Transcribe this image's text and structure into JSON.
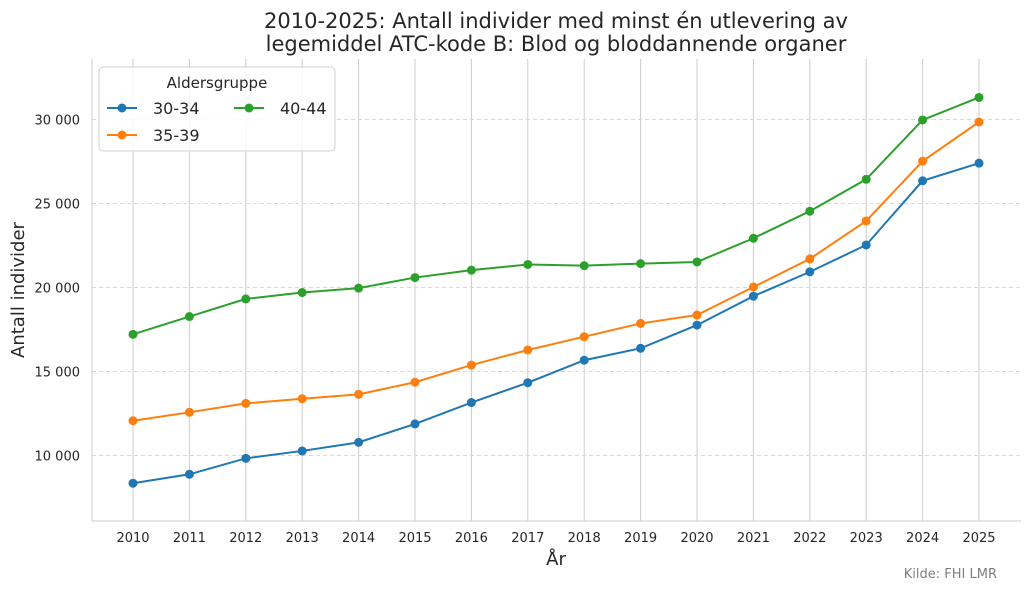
{
  "chart_data": {
    "type": "line",
    "title_line1": "2010-2025: Antall individer med minst én utlevering av",
    "title_line2": "legemiddel ATC-kode B: Blod og bloddannende organer",
    "xlabel": "År",
    "ylabel": "Antall individer",
    "x": [
      2010,
      2011,
      2012,
      2013,
      2014,
      2015,
      2016,
      2017,
      2018,
      2019,
      2020,
      2021,
      2022,
      2023,
      2024,
      2025
    ],
    "x_tick_labels": [
      "2010",
      "2011",
      "2012",
      "2013",
      "2014",
      "2015",
      "2016",
      "2017",
      "2018",
      "2019",
      "2020",
      "2021",
      "2022",
      "2023",
      "2024",
      "2025"
    ],
    "ylim": [
      6100,
      33600
    ],
    "y_ticks": [
      10000,
      15000,
      20000,
      25000,
      30000
    ],
    "y_tick_labels": [
      "10 000",
      "15 000",
      "20 000",
      "25 000",
      "30 000"
    ],
    "grid": "x solid, y dashed",
    "legend": {
      "title": "Aldersgruppe",
      "placement": "top-left"
    },
    "series": [
      {
        "name": "30-34",
        "color": "#1f77b4",
        "values": [
          8350,
          8880,
          9830,
          10270,
          10780,
          11880,
          13150,
          14330,
          15670,
          16380,
          17760,
          19480,
          20930,
          22530,
          26350,
          27400
        ]
      },
      {
        "name": "35-39",
        "color": "#ff7f0e",
        "values": [
          12070,
          12570,
          13100,
          13380,
          13640,
          14360,
          15380,
          16280,
          17070,
          17860,
          18360,
          20030,
          21700,
          23960,
          27520,
          29850
        ]
      },
      {
        "name": "40-44",
        "color": "#2ca02c",
        "values": [
          17210,
          18270,
          19320,
          19700,
          19960,
          20590,
          21030,
          21370,
          21300,
          21420,
          21520,
          22930,
          24540,
          26440,
          29970,
          31310
        ]
      }
    ],
    "source": "Kilde: FHI LMR"
  }
}
